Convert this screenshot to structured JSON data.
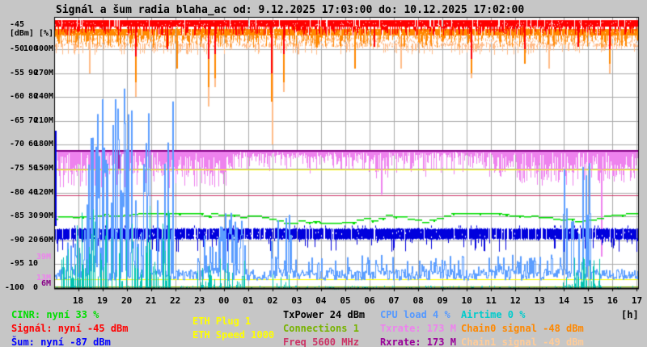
{
  "title": "Signál a šum radia blaha_ac od: 9.12.2025 17:03:00 do: 10.12.2025 17:02:00",
  "y_axis": {
    "unit_label": "[dBm] [%]",
    "rows": [
      [
        "-45",
        "",
        ""
      ],
      [
        "-50",
        "100",
        "300M"
      ],
      [
        "-55",
        "90",
        "270M"
      ],
      [
        "-60",
        "80",
        "240M"
      ],
      [
        "-65",
        "70",
        "210M"
      ],
      [
        "-70",
        "60",
        "180M"
      ],
      [
        "-75",
        "50",
        "150M"
      ],
      [
        "-80",
        "40",
        "120M"
      ],
      [
        "-85",
        "30",
        "90M"
      ],
      [
        "-90",
        "20",
        "60M"
      ],
      [
        "-95",
        "10",
        ""
      ],
      [
        "-100",
        "0",
        ""
      ]
    ],
    "rate_markers": [
      {
        "text": "39M",
        "color": "#ee82ee",
        "rate": 39
      },
      {
        "text": "13M",
        "color": "#ee82ee",
        "rate": 13
      },
      {
        "text": "6M",
        "color": "#880088",
        "rate": 6
      }
    ]
  },
  "x_axis": {
    "unit": "[h]",
    "ticks": [
      "18",
      "19",
      "20",
      "21",
      "22",
      "23",
      "00",
      "01",
      "02",
      "03",
      "04",
      "05",
      "06",
      "07",
      "08",
      "09",
      "10",
      "11",
      "12",
      "13",
      "14",
      "15",
      "16",
      "17"
    ]
  },
  "legend": {
    "items": [
      {
        "id": "cinr",
        "text": "CINR: nyní 33 %",
        "color": "#00dd00"
      },
      {
        "id": "signal",
        "text": "Signál: nyní -45 dBm",
        "color": "#ff0000"
      },
      {
        "id": "noise",
        "text": "Šum: nyní -87 dBm",
        "color": "#0000ff"
      },
      {
        "id": "eth-plug",
        "text": "ETH Plug 1",
        "color": "#ffff00"
      },
      {
        "id": "eth-speed",
        "text": "ETH Speed 1000",
        "color": "#ffff00"
      },
      {
        "id": "txpower",
        "text": "TxPower 24 dBm",
        "color": "#000000"
      },
      {
        "id": "connections",
        "text": "Connections 1",
        "color": "#77b300"
      },
      {
        "id": "freq",
        "text": "Freq 5600 MHz",
        "color": "#cc3366"
      },
      {
        "id": "cpu-load",
        "text": "CPU load 4 %",
        "color": "#5599ff"
      },
      {
        "id": "txrate",
        "text": "Txrate: 173 M",
        "color": "#ee82ee"
      },
      {
        "id": "rxrate",
        "text": "Rxrate: 173 M",
        "color": "#990099"
      },
      {
        "id": "airtime",
        "text": "Airtime 0 %",
        "color": "#00cccc"
      },
      {
        "id": "chain0",
        "text": "Chain0 signal -48 dBm",
        "color": "#ff8800"
      },
      {
        "id": "chain1",
        "text": "Chain1 signal -49 dBm",
        "color": "#ffcc99"
      }
    ]
  },
  "chart_data": {
    "type": "line",
    "title": "Signál a šum radia blaha_ac",
    "time_start": "9.12.2025 17:03:00",
    "time_end": "10.12.2025 17:02:00",
    "x_unit": "hours",
    "axes": {
      "dbm": {
        "min": -100,
        "max": -43.5
      },
      "percent": {
        "min": 0,
        "max": 105.7
      },
      "rate_mbit": {
        "min": 0,
        "max": 317
      }
    },
    "current": {
      "cinr_pct": 33,
      "signal_dbm": -45,
      "noise_dbm": -87,
      "eth_plug": 1,
      "eth_speed": 1000,
      "txpower_dbm": 24,
      "connections": 1,
      "freq_mhz": 5600,
      "cpu_load_pct": 4,
      "txrate_m": 173,
      "rxrate_m": 173,
      "airtime_pct": 0,
      "chain0_dbm": -48,
      "chain1_dbm": -49
    },
    "series": [
      {
        "name": "Txrate",
        "unit": "Mbit",
        "color": "#ee82ee",
        "render": "hanging_band",
        "top": 173,
        "windows": [
          [
            0.05,
            7.3,
            0.75,
            140,
            162,
            0.18,
            126
          ],
          [
            7.3,
            12.2,
            0.3,
            148,
            164,
            0.02,
            140
          ],
          [
            12.2,
            19.0,
            0.45,
            145,
            162,
            0.04,
            138
          ],
          [
            19.0,
            23.95,
            0.78,
            134,
            160,
            0.1,
            128
          ]
        ],
        "deep": [
          [
            2.6,
            150,
            "#aa22aa"
          ],
          [
            13.4,
            118,
            "#ee82ee"
          ],
          [
            22.47,
            40,
            "#ee82ee"
          ]
        ],
        "current": 173
      },
      {
        "name": "ETH Speed",
        "unit": "Mbit",
        "color": "#ffff00",
        "render": "hline",
        "value": 149,
        "thick": 1,
        "current": 1000
      },
      {
        "name": "Freq",
        "unit": "MHz",
        "color": "#cc3366",
        "render": "hline",
        "value": 117,
        "thick": 1,
        "current": 5600
      },
      {
        "name": "Rxrate",
        "unit": "Mbit",
        "color": "#880088",
        "render": "hline",
        "value": 173,
        "thick": 2,
        "current": 173
      },
      {
        "name": "CINR",
        "unit": "%",
        "color": "#00dd00",
        "render": "wiggle_line",
        "base": 29,
        "range": [
          27.2,
          31.5
        ],
        "current": 33
      },
      {
        "name": "Šum",
        "unit": "dBm",
        "color": "#0000dd",
        "render": "noise_band",
        "band": [
          -87.4,
          -89.6
        ],
        "tick_to": -92.5,
        "tick_p": 0.12,
        "start_spike": -67,
        "current": -87
      },
      {
        "name": "ETH Plug",
        "unit": "",
        "color": "#ffff00",
        "render": "hline",
        "value": 11,
        "thick": 1,
        "current": 1
      },
      {
        "name": "Connections",
        "unit": "",
        "color": "#77b300",
        "render": "hline",
        "value": 2,
        "thick": 1,
        "current": 1
      },
      {
        "name": "CPU load",
        "unit": "%",
        "color": "#5c9eff",
        "render": "spike_line",
        "base": [
          3.5,
          8
        ],
        "clusters": [
          [
            0.2,
            1.15,
            35
          ],
          [
            1.15,
            4.85,
            88
          ],
          [
            5.85,
            7.8,
            34
          ],
          [
            8.85,
            9.7,
            36
          ],
          [
            20.9,
            22.2,
            60
          ]
        ],
        "mid_bump": [
          9.7,
          20.9,
          14
        ],
        "current": 4
      },
      {
        "name": "Airtime",
        "unit": "%",
        "color": "#00c2b0",
        "render": "bottom_spikes",
        "clusters": [
          [
            0.2,
            4.85,
            36
          ],
          [
            5.85,
            7.8,
            16
          ],
          [
            8.85,
            9.7,
            9
          ],
          [
            20.9,
            22.6,
            13
          ]
        ],
        "current": 0
      },
      {
        "name": "Chain1 signal",
        "unit": "dBm",
        "color": "#ffbb88",
        "render": "speckle_band",
        "band": [
          -47.2,
          -48.8
        ],
        "tick_to": -51,
        "tick_p": 0.35,
        "deep": [
          [
            1.4,
            -55
          ],
          [
            3.3,
            -60
          ],
          [
            6.3,
            -62
          ],
          [
            6.55,
            -58
          ],
          [
            8.92,
            -70
          ],
          [
            9.4,
            -59
          ],
          [
            14.2,
            -54
          ],
          [
            17.12,
            -56
          ],
          [
            20.3,
            -54
          ],
          [
            22.8,
            -55
          ]
        ],
        "current": -49
      },
      {
        "name": "Chain0 signal",
        "unit": "dBm",
        "color": "#ff8800",
        "render": "top_band",
        "band": [
          -45.8,
          -47.1
        ],
        "tick_to": -49.5,
        "tick_p": 0.45,
        "up_to": -44.8,
        "up_p": 0.12,
        "deep": [
          [
            3.3,
            -57
          ],
          [
            5.0,
            -54
          ],
          [
            6.3,
            -58
          ],
          [
            6.55,
            -56
          ],
          [
            8.9,
            -61
          ],
          [
            9.4,
            -57
          ],
          [
            12.3,
            -54
          ],
          [
            17.1,
            -55
          ],
          [
            19.3,
            -53
          ],
          [
            22.8,
            -53
          ]
        ],
        "current": -48
      },
      {
        "name": "Signál",
        "unit": "dBm",
        "color": "#ff0000",
        "render": "top_band",
        "band": [
          -43.9,
          -45.3
        ],
        "tick_to": -47,
        "tick_p": 0.5,
        "deep": [
          [
            3.3,
            -51.5
          ],
          [
            4.6,
            -50
          ],
          [
            6.3,
            -52
          ],
          [
            6.55,
            -51
          ],
          [
            8.9,
            -55
          ],
          [
            9.4,
            -51
          ],
          [
            13.1,
            -49.5
          ],
          [
            17.1,
            -52
          ],
          [
            19.3,
            -50
          ],
          [
            21.5,
            -49.5
          ],
          [
            22.8,
            -50
          ]
        ],
        "current": -45
      }
    ]
  }
}
